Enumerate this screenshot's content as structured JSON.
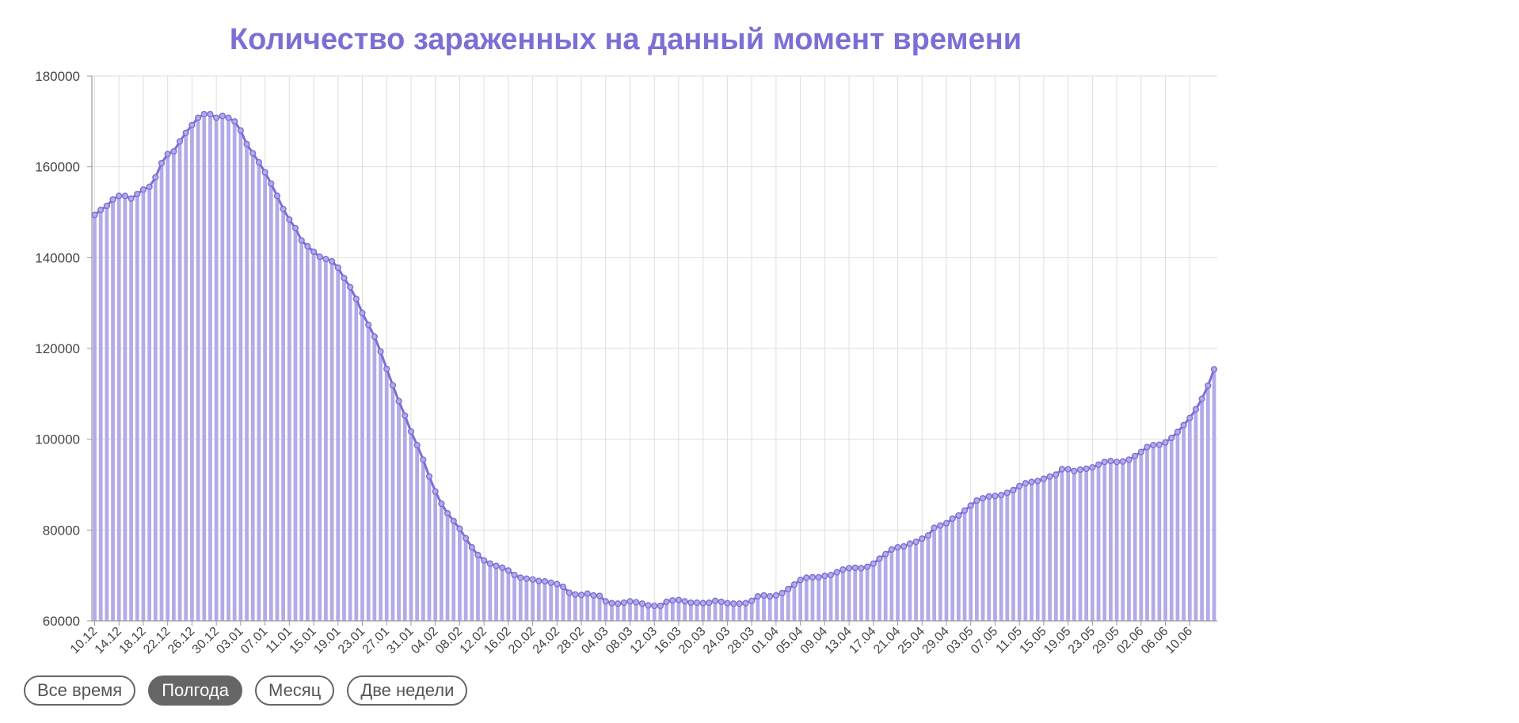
{
  "colors": {
    "accent": "#7b6fd6",
    "bar": "#b3abe8",
    "grid": "#dedede",
    "axis": "#999999"
  },
  "range_buttons": [
    {
      "label": "Все время",
      "active": false
    },
    {
      "label": "Полгода",
      "active": true
    },
    {
      "label": "Месяц",
      "active": false
    },
    {
      "label": "Две недели",
      "active": false
    }
  ],
  "chart_data": {
    "type": "bar",
    "title": "Количество зараженных на данный момент времени",
    "ylim": [
      60000,
      180000
    ],
    "yticks": [
      60000,
      80000,
      100000,
      120000,
      140000,
      160000,
      180000
    ],
    "xtick_labels": [
      "10.12",
      "14.12",
      "18.12",
      "22.12",
      "26.12",
      "30.12",
      "03.01",
      "07.01",
      "11.01",
      "15.01",
      "19.01",
      "23.01",
      "27.01",
      "31.01",
      "04.02",
      "08.02",
      "12.02",
      "16.02",
      "20.02",
      "24.02",
      "28.02",
      "04.03",
      "08.03",
      "12.03",
      "16.03",
      "20.03",
      "24.03",
      "28.03",
      "01.04",
      "05.04",
      "09.04",
      "13.04",
      "17.04",
      "21.04",
      "25.04",
      "29.04",
      "03.05",
      "07.05",
      "11.05",
      "15.05",
      "19.05",
      "23.05",
      "29.05",
      "02.06",
      "06.06",
      "10.06"
    ],
    "grid": true,
    "series": [
      {
        "type": "bar",
        "values": [
          149400,
          150500,
          151400,
          152800,
          153600,
          153600,
          153000,
          154000,
          155000,
          155600,
          157700,
          160800,
          162800,
          163400,
          165600,
          167500,
          169200,
          170800,
          171600,
          171600,
          170800,
          171200,
          170800,
          170000,
          168000,
          165000,
          163000,
          161000,
          158800,
          156300,
          153600,
          150700,
          148400,
          146500,
          143800,
          142500,
          141300,
          140200,
          139700,
          139200,
          137800,
          135500,
          133500,
          130900,
          127800,
          125200,
          122600,
          119300,
          115500,
          111900,
          108400,
          105200,
          101700,
          98700,
          95500,
          91800,
          88500,
          85800,
          83700,
          82000,
          80300,
          78200,
          76200,
          74500,
          73300,
          72600,
          72100,
          71700,
          71100,
          70100,
          69500,
          69300,
          69100,
          68800,
          68700,
          68400,
          68100,
          67500,
          66200,
          65800,
          65700,
          66000,
          65600,
          65500,
          64300,
          63900,
          63800,
          64000,
          64300,
          64100,
          63800,
          63400,
          63300,
          63300,
          64200,
          64500,
          64600,
          64300,
          64000,
          64000,
          63900,
          64000,
          64400,
          64200,
          63900,
          63800,
          63800,
          63900,
          64400,
          65400,
          65600,
          65400,
          65600,
          66100,
          67000,
          68000,
          69000,
          69500,
          69600,
          69600,
          69900,
          70100,
          70700,
          71300,
          71600,
          71700,
          71600,
          71900,
          72600,
          73700,
          74700,
          75700,
          76200,
          76400,
          77000,
          77400,
          78100,
          78800,
          80500,
          81000,
          81500,
          82500,
          83200,
          84300,
          85400,
          86500,
          87000,
          87400,
          87500,
          87700,
          88200,
          88800,
          89700,
          90300,
          90600,
          90800,
          91300,
          91800,
          92200,
          93400,
          93400,
          93000,
          93300,
          93500,
          93800,
          94400,
          95000,
          95200,
          95000,
          95100,
          95500,
          96300,
          97200,
          98300,
          98700,
          98800,
          99300,
          100300,
          101600,
          103100,
          104700,
          106600,
          108900,
          111800,
          115400
        ]
      },
      {
        "type": "line"
      }
    ]
  }
}
